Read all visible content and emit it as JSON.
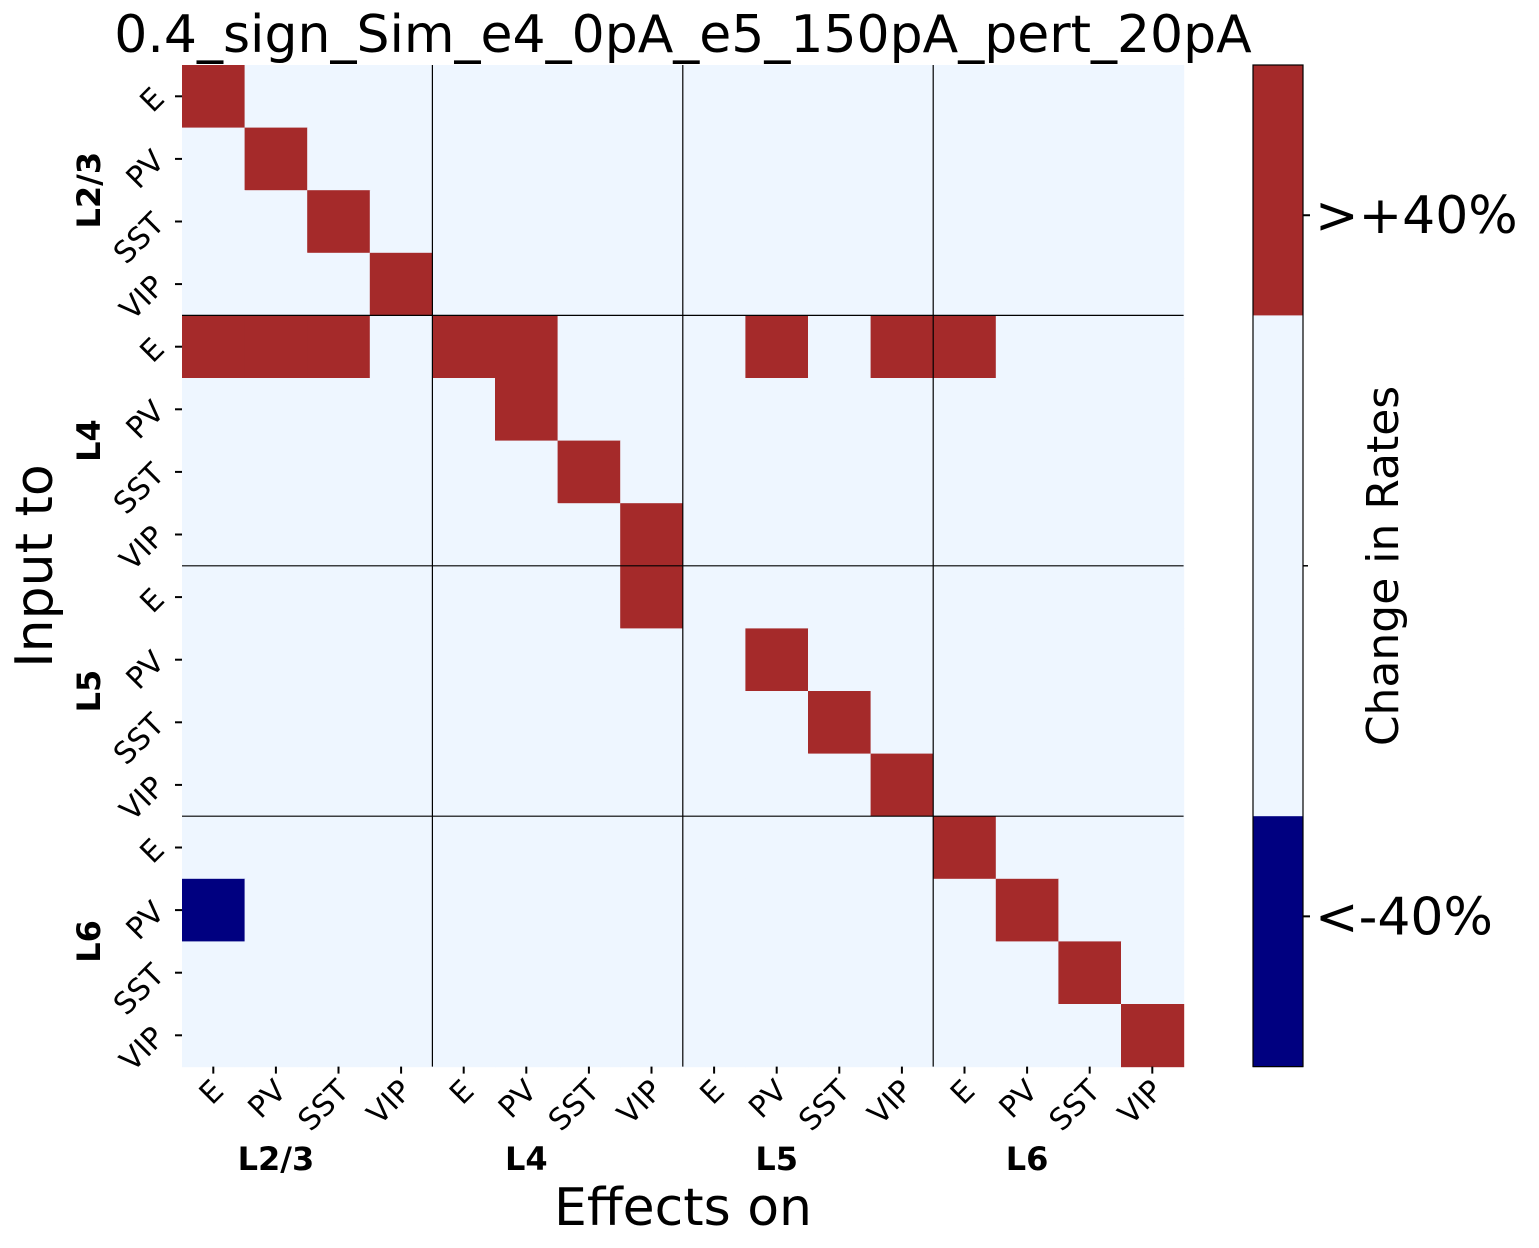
{
  "chart_data": {
    "type": "heatmap",
    "title": "0.4_sign_Sim_e4_0pA_e5_150pA_pert_20pA",
    "xlabel": "Effects on",
    "ylabel": "Input to",
    "cell_labels": [
      "E",
      "PV",
      "SST",
      "VIP",
      "E",
      "PV",
      "SST",
      "VIP",
      "E",
      "PV",
      "SST",
      "VIP",
      "E",
      "PV",
      "SST",
      "VIP"
    ],
    "group_labels": [
      "L2/3",
      "L4",
      "L5",
      "L6"
    ],
    "values": [
      [
        1,
        0,
        0,
        0,
        0,
        0,
        0,
        0,
        0,
        0,
        0,
        0,
        0,
        0,
        0,
        0
      ],
      [
        0,
        1,
        0,
        0,
        0,
        0,
        0,
        0,
        0,
        0,
        0,
        0,
        0,
        0,
        0,
        0
      ],
      [
        0,
        0,
        1,
        0,
        0,
        0,
        0,
        0,
        0,
        0,
        0,
        0,
        0,
        0,
        0,
        0
      ],
      [
        0,
        0,
        0,
        1,
        0,
        0,
        0,
        0,
        0,
        0,
        0,
        0,
        0,
        0,
        0,
        0
      ],
      [
        1,
        1,
        1,
        0,
        1,
        1,
        0,
        0,
        0,
        1,
        0,
        1,
        1,
        0,
        0,
        0
      ],
      [
        0,
        0,
        0,
        0,
        0,
        1,
        0,
        0,
        0,
        0,
        0,
        0,
        0,
        0,
        0,
        0
      ],
      [
        0,
        0,
        0,
        0,
        0,
        0,
        1,
        0,
        0,
        0,
        0,
        0,
        0,
        0,
        0,
        0
      ],
      [
        0,
        0,
        0,
        0,
        0,
        0,
        0,
        1,
        0,
        0,
        0,
        0,
        0,
        0,
        0,
        0
      ],
      [
        0,
        0,
        0,
        0,
        0,
        0,
        0,
        1,
        0,
        0,
        0,
        0,
        0,
        0,
        0,
        0
      ],
      [
        0,
        0,
        0,
        0,
        0,
        0,
        0,
        0,
        0,
        1,
        0,
        0,
        0,
        0,
        0,
        0
      ],
      [
        0,
        0,
        0,
        0,
        0,
        0,
        0,
        0,
        0,
        0,
        1,
        0,
        0,
        0,
        0,
        0
      ],
      [
        0,
        0,
        0,
        0,
        0,
        0,
        0,
        0,
        0,
        0,
        0,
        1,
        0,
        0,
        0,
        0
      ],
      [
        0,
        0,
        0,
        0,
        0,
        0,
        0,
        0,
        0,
        0,
        0,
        0,
        1,
        0,
        0,
        0
      ],
      [
        -1,
        0,
        0,
        0,
        0,
        0,
        0,
        0,
        0,
        0,
        0,
        0,
        0,
        1,
        0,
        0
      ],
      [
        0,
        0,
        0,
        0,
        0,
        0,
        0,
        0,
        0,
        0,
        0,
        0,
        0,
        0,
        1,
        0
      ],
      [
        0,
        0,
        0,
        0,
        0,
        0,
        0,
        0,
        0,
        0,
        0,
        0,
        0,
        0,
        0,
        1
      ]
    ],
    "colors": {
      "-1": "#000080",
      "0": "#eef6ff",
      "1": "#a52a2a"
    },
    "colorbar": {
      "label": "Change in Rates",
      "ticks": [
        ">+40%",
        "<-40%"
      ],
      "segments": [
        "#a52a2a",
        "#eef6ff",
        "#eef6ff",
        "#000080"
      ]
    },
    "grid": false,
    "group_separators": true
  }
}
